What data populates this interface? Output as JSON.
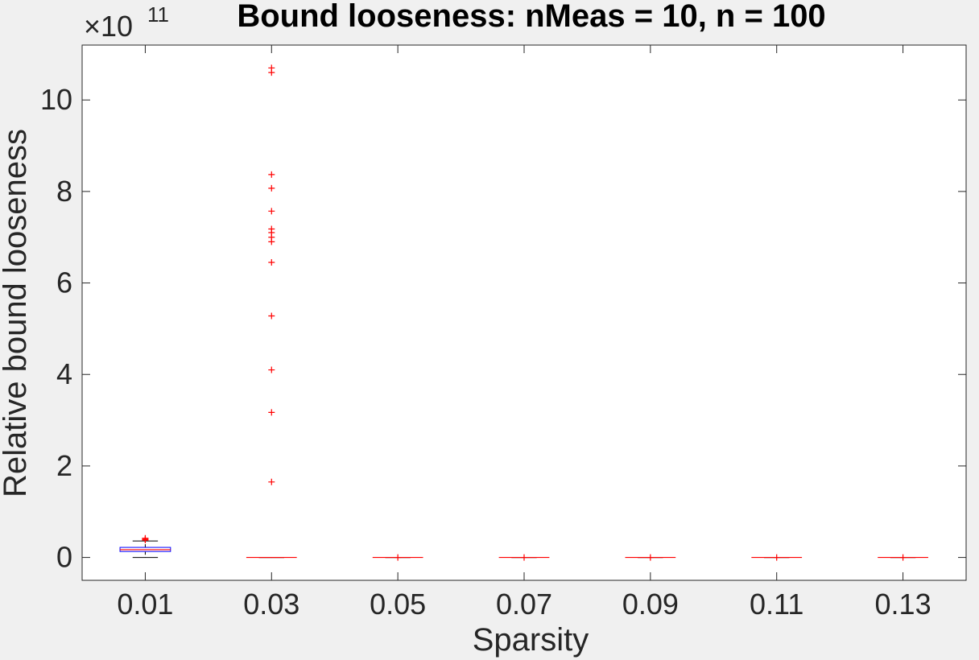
{
  "chart_data": {
    "type": "box",
    "title": "Bound looseness: nMeas = 10, n = 100",
    "xlabel": "Sparsity",
    "ylabel": "Relative bound looseness",
    "y_exponent_label": {
      "base": "×10",
      "exponent": "11"
    },
    "y_scale_factor": 100000000000.0,
    "ylim": [
      -0.5,
      11.2
    ],
    "yticks": [
      0,
      2,
      4,
      6,
      8,
      10
    ],
    "categories": [
      "0.01",
      "0.03",
      "0.05",
      "0.07",
      "0.09",
      "0.11",
      "0.13"
    ],
    "boxes": [
      {
        "category": "0.01",
        "q1": 0.13,
        "median": 0.17,
        "q3": 0.22,
        "whisker_low": 0.0,
        "whisker_high": 0.36,
        "outliers": [
          0.38,
          0.4,
          0.42
        ]
      },
      {
        "category": "0.03",
        "q1": 0.0,
        "median": 0.0,
        "q3": 0.0,
        "whisker_low": 0.0,
        "whisker_high": 0.0,
        "outliers": [
          1.65,
          3.17,
          4.1,
          5.28,
          6.45,
          6.9,
          7.0,
          7.1,
          7.18,
          7.57,
          8.07,
          8.37,
          10.6,
          10.7
        ]
      },
      {
        "category": "0.05",
        "q1": 0.0,
        "median": 0.0,
        "q3": 0.0,
        "whisker_low": 0.0,
        "whisker_high": 0.0,
        "outliers": [
          0.0
        ]
      },
      {
        "category": "0.07",
        "q1": 0.0,
        "median": 0.0,
        "q3": 0.0,
        "whisker_low": 0.0,
        "whisker_high": 0.0,
        "outliers": [
          0.0
        ]
      },
      {
        "category": "0.09",
        "q1": 0.0,
        "median": 0.0,
        "q3": 0.0,
        "whisker_low": 0.0,
        "whisker_high": 0.0,
        "outliers": [
          0.0
        ]
      },
      {
        "category": "0.11",
        "q1": 0.0,
        "median": 0.0,
        "q3": 0.0,
        "whisker_low": 0.0,
        "whisker_high": 0.0,
        "outliers": [
          0.0
        ]
      },
      {
        "category": "0.13",
        "q1": 0.0,
        "median": 0.0,
        "q3": 0.0,
        "whisker_low": 0.0,
        "whisker_high": 0.0,
        "outliers": [
          0.0
        ]
      }
    ],
    "grid": false,
    "colors": {
      "box": "#0000ff",
      "median": "#ff0000",
      "outlier": "#ff0000",
      "whisker": "#000000",
      "axes": "#262626",
      "plot_bg": "#ffffff",
      "figure_bg": "#f0f0f0"
    }
  }
}
